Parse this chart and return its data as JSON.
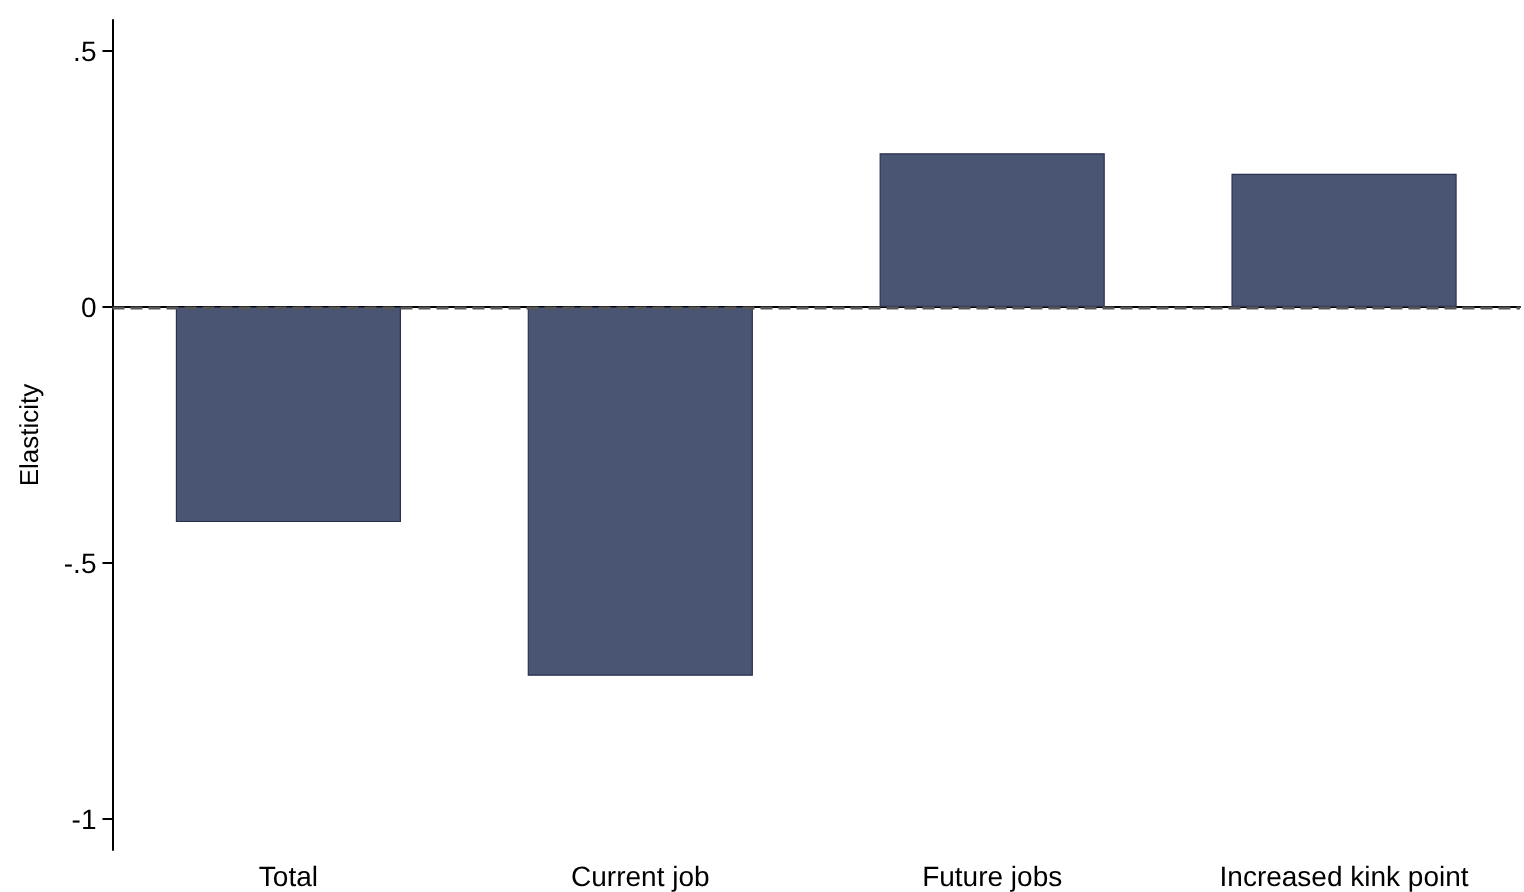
{
  "chart_data": {
    "type": "bar",
    "ylabel": "Elasticity",
    "categories": [
      "Total",
      "Current job",
      "Future jobs",
      "Increased kink point"
    ],
    "values": [
      -0.42,
      -0.72,
      0.3,
      0.26
    ],
    "color": "#4a5574",
    "ylim": [
      -1.06,
      0.56
    ],
    "yticks": [
      {
        "value": -1,
        "label": "-1"
      },
      {
        "value": -0.5,
        "label": "-.5"
      },
      {
        "value": 0,
        "label": "0"
      },
      {
        "value": 0.5,
        "label": ".5"
      }
    ],
    "grid": false,
    "ref_lines": [
      {
        "axis": "y",
        "value": 0,
        "color": "#555555",
        "line_style": "dashed"
      }
    ]
  }
}
